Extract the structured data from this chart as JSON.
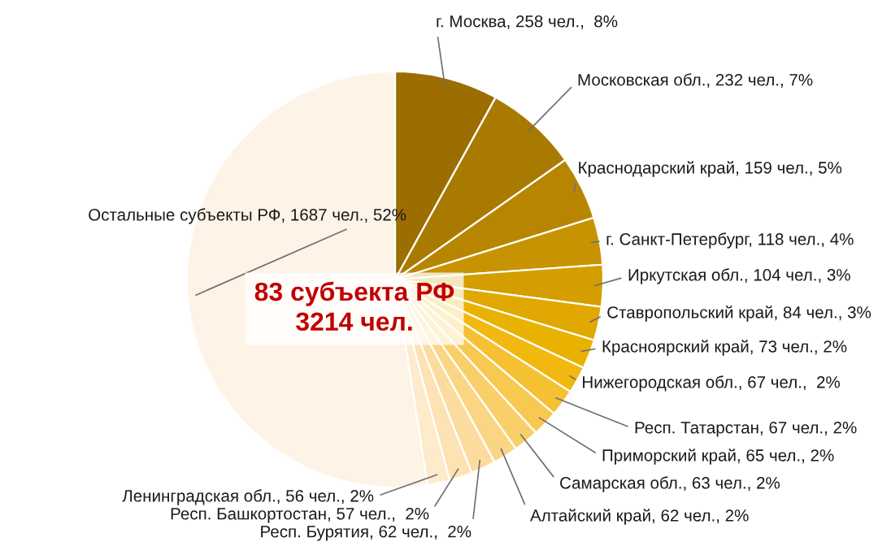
{
  "chart_data": {
    "type": "pie",
    "categories": [
      "г. Москва",
      "Московская обл.",
      "Краснодарский край",
      "г. Санкт-Петербург",
      "Иркутская обл.",
      "Ставропольский край",
      "Красноярский край",
      "Нижегородская обл.",
      "Респ. Татарстан",
      "Приморский край",
      "Самарская обл.",
      "Алтайский край",
      "Респ. Бурятия",
      "Респ. Башкортостан",
      "Ленинградская обл.",
      "Остальные субъекты РФ"
    ],
    "values": [
      258,
      232,
      159,
      118,
      104,
      84,
      73,
      67,
      67,
      65,
      63,
      62,
      62,
      57,
      56,
      1687
    ],
    "value_labels": [
      "258 чел.,  8%",
      "232 чел., 7%",
      "159 чел., 5%",
      "118 чел., 4%",
      "104 чел., 3%",
      "84 чел., 3%",
      "73 чел., 2%",
      "67 чел.,  2%",
      "67 чел., 2%",
      "65 чел., 2%",
      "63 чел., 2%",
      "62 чел., 2%",
      "62 чел.,  2%",
      "57 чел.,  2%",
      "56 чел., 2%",
      "1687 чел., 52%"
    ],
    "colors": [
      "#9c6d00",
      "#a97a00",
      "#b88500",
      "#c89300",
      "#d49e00",
      "#e0a800",
      "#eab200",
      "#f2b810",
      "#f5c132",
      "#f7c950",
      "#f9cf6a",
      "#fad584",
      "#fcdc9e",
      "#fde2b4",
      "#feebcc",
      "#fdf3e6"
    ],
    "annotations": [
      "83 субъекта РФ",
      "3214 чел."
    ]
  }
}
